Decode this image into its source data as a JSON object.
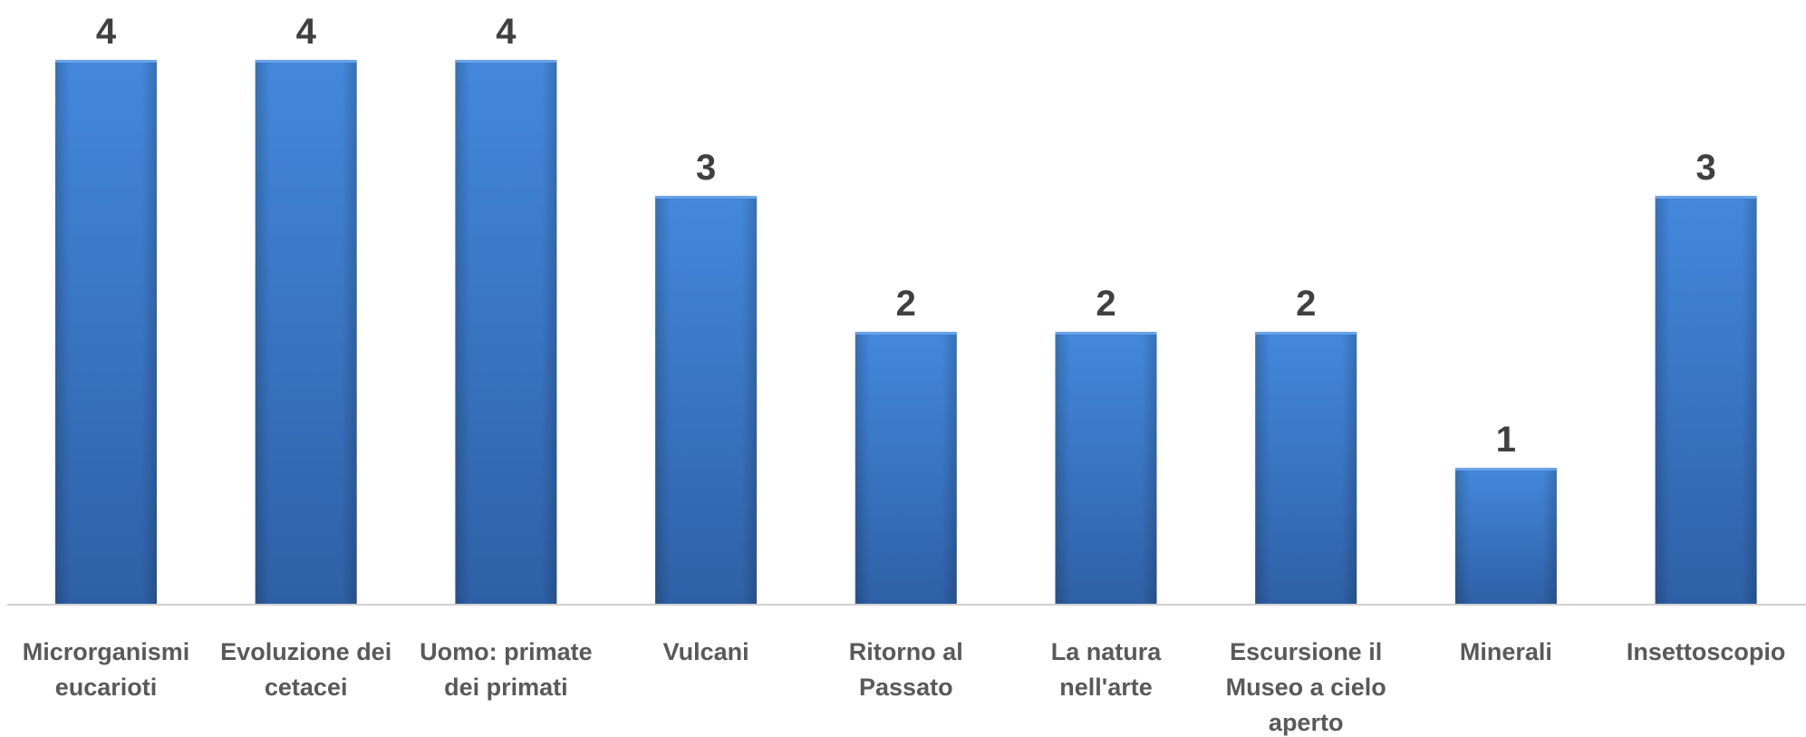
{
  "chart_data": {
    "type": "bar",
    "categories": [
      "Microrganismi eucarioti",
      "Evoluzione dei cetacei",
      "Uomo: primate dei primati",
      "Vulcani",
      "Ritorno al Passato",
      "La natura nell'arte",
      "Escursione il Museo a cielo aperto",
      "Minerali",
      "Insettoscopio"
    ],
    "values": [
      4,
      4,
      4,
      3,
      2,
      2,
      2,
      1,
      3
    ],
    "color": "#3a7bd0"
  }
}
